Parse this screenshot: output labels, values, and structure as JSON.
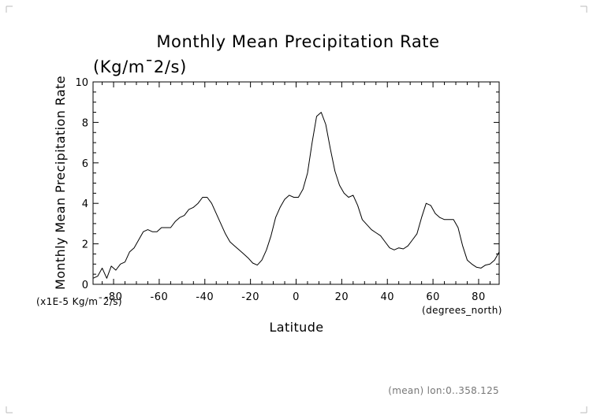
{
  "chart_data": {
    "type": "line",
    "title": "Monthly Mean Precipitation Rate",
    "subtitle": "(Kg/m¯2/s)",
    "xlabel": "Latitude",
    "ylabel": "Monthly Mean Precipitation Rate",
    "x_units": "(degrees_north)",
    "y_units": "(x1E-5 Kg/m¯2/s)",
    "footnote": "(mean) lon:0..358.125",
    "xlim": [
      -89,
      89
    ],
    "ylim": [
      0,
      10
    ],
    "xticks": [
      -80,
      -60,
      -40,
      -20,
      0,
      20,
      40,
      60,
      80
    ],
    "xtick_labels": [
      "-80",
      "-60",
      "-40",
      "-20",
      "0",
      "20",
      "40",
      "60",
      "80"
    ],
    "yticks": [
      0,
      2,
      4,
      6,
      8,
      10
    ],
    "ytick_labels": [
      "0",
      "2",
      "4",
      "6",
      "8",
      "10"
    ],
    "grid": false,
    "series": [
      {
        "x": [
          -89,
          -87,
          -85,
          -83,
          -81,
          -79,
          -77,
          -75,
          -73,
          -71,
          -69,
          -67,
          -65,
          -63,
          -61,
          -59,
          -57,
          -55,
          -53,
          -51,
          -49,
          -47,
          -45,
          -43,
          -41,
          -39,
          -37,
          -35,
          -33,
          -31,
          -29,
          -27,
          -25,
          -23,
          -21,
          -19,
          -17,
          -15,
          -13,
          -11,
          -9,
          -7,
          -5,
          -3,
          -1,
          1,
          3,
          5,
          7,
          9,
          11,
          13,
          15,
          17,
          19,
          21,
          23,
          25,
          27,
          29,
          31,
          33,
          35,
          37,
          39,
          41,
          43,
          45,
          47,
          49,
          51,
          53,
          55,
          57,
          59,
          61,
          63,
          65,
          67,
          69,
          71,
          73,
          75,
          77,
          79,
          81,
          83,
          85,
          87,
          89
        ],
        "y": [
          0.3,
          0.4,
          0.8,
          0.3,
          0.9,
          0.7,
          1.0,
          1.1,
          1.6,
          1.8,
          2.2,
          2.6,
          2.7,
          2.6,
          2.6,
          2.8,
          2.8,
          2.8,
          3.1,
          3.3,
          3.4,
          3.7,
          3.8,
          4.0,
          4.3,
          4.3,
          4.0,
          3.5,
          3.0,
          2.5,
          2.1,
          1.9,
          1.7,
          1.5,
          1.3,
          1.05,
          0.95,
          1.2,
          1.7,
          2.4,
          3.3,
          3.8,
          4.2,
          4.4,
          4.3,
          4.3,
          4.7,
          5.5,
          7.0,
          8.3,
          8.5,
          7.9,
          6.7,
          5.6,
          4.9,
          4.5,
          4.3,
          4.4,
          3.9,
          3.2,
          2.95,
          2.7,
          2.55,
          2.4,
          2.1,
          1.8,
          1.7,
          1.8,
          1.75,
          1.9,
          2.2,
          2.5,
          3.3,
          4.0,
          3.9,
          3.5,
          3.3,
          3.2,
          3.2,
          3.2,
          2.8,
          1.9,
          1.2,
          1.0,
          0.85,
          0.8,
          0.95,
          1.0,
          1.2,
          1.6
        ]
      }
    ]
  }
}
